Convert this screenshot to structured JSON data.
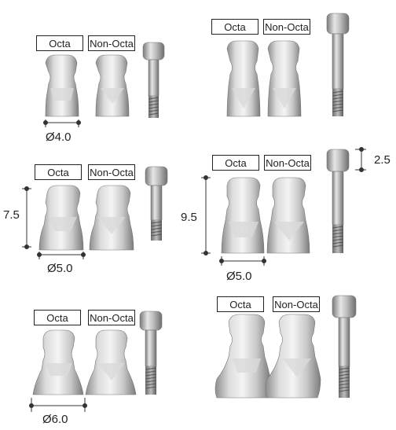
{
  "label_octa": "Octa",
  "label_non_octa": "Non-Octa",
  "dims": {
    "d40": "Ø4.0",
    "d50": "Ø5.0",
    "d60": "Ø6.0",
    "h75": "7.5",
    "h95": "9.5",
    "h25": "2.5"
  }
}
